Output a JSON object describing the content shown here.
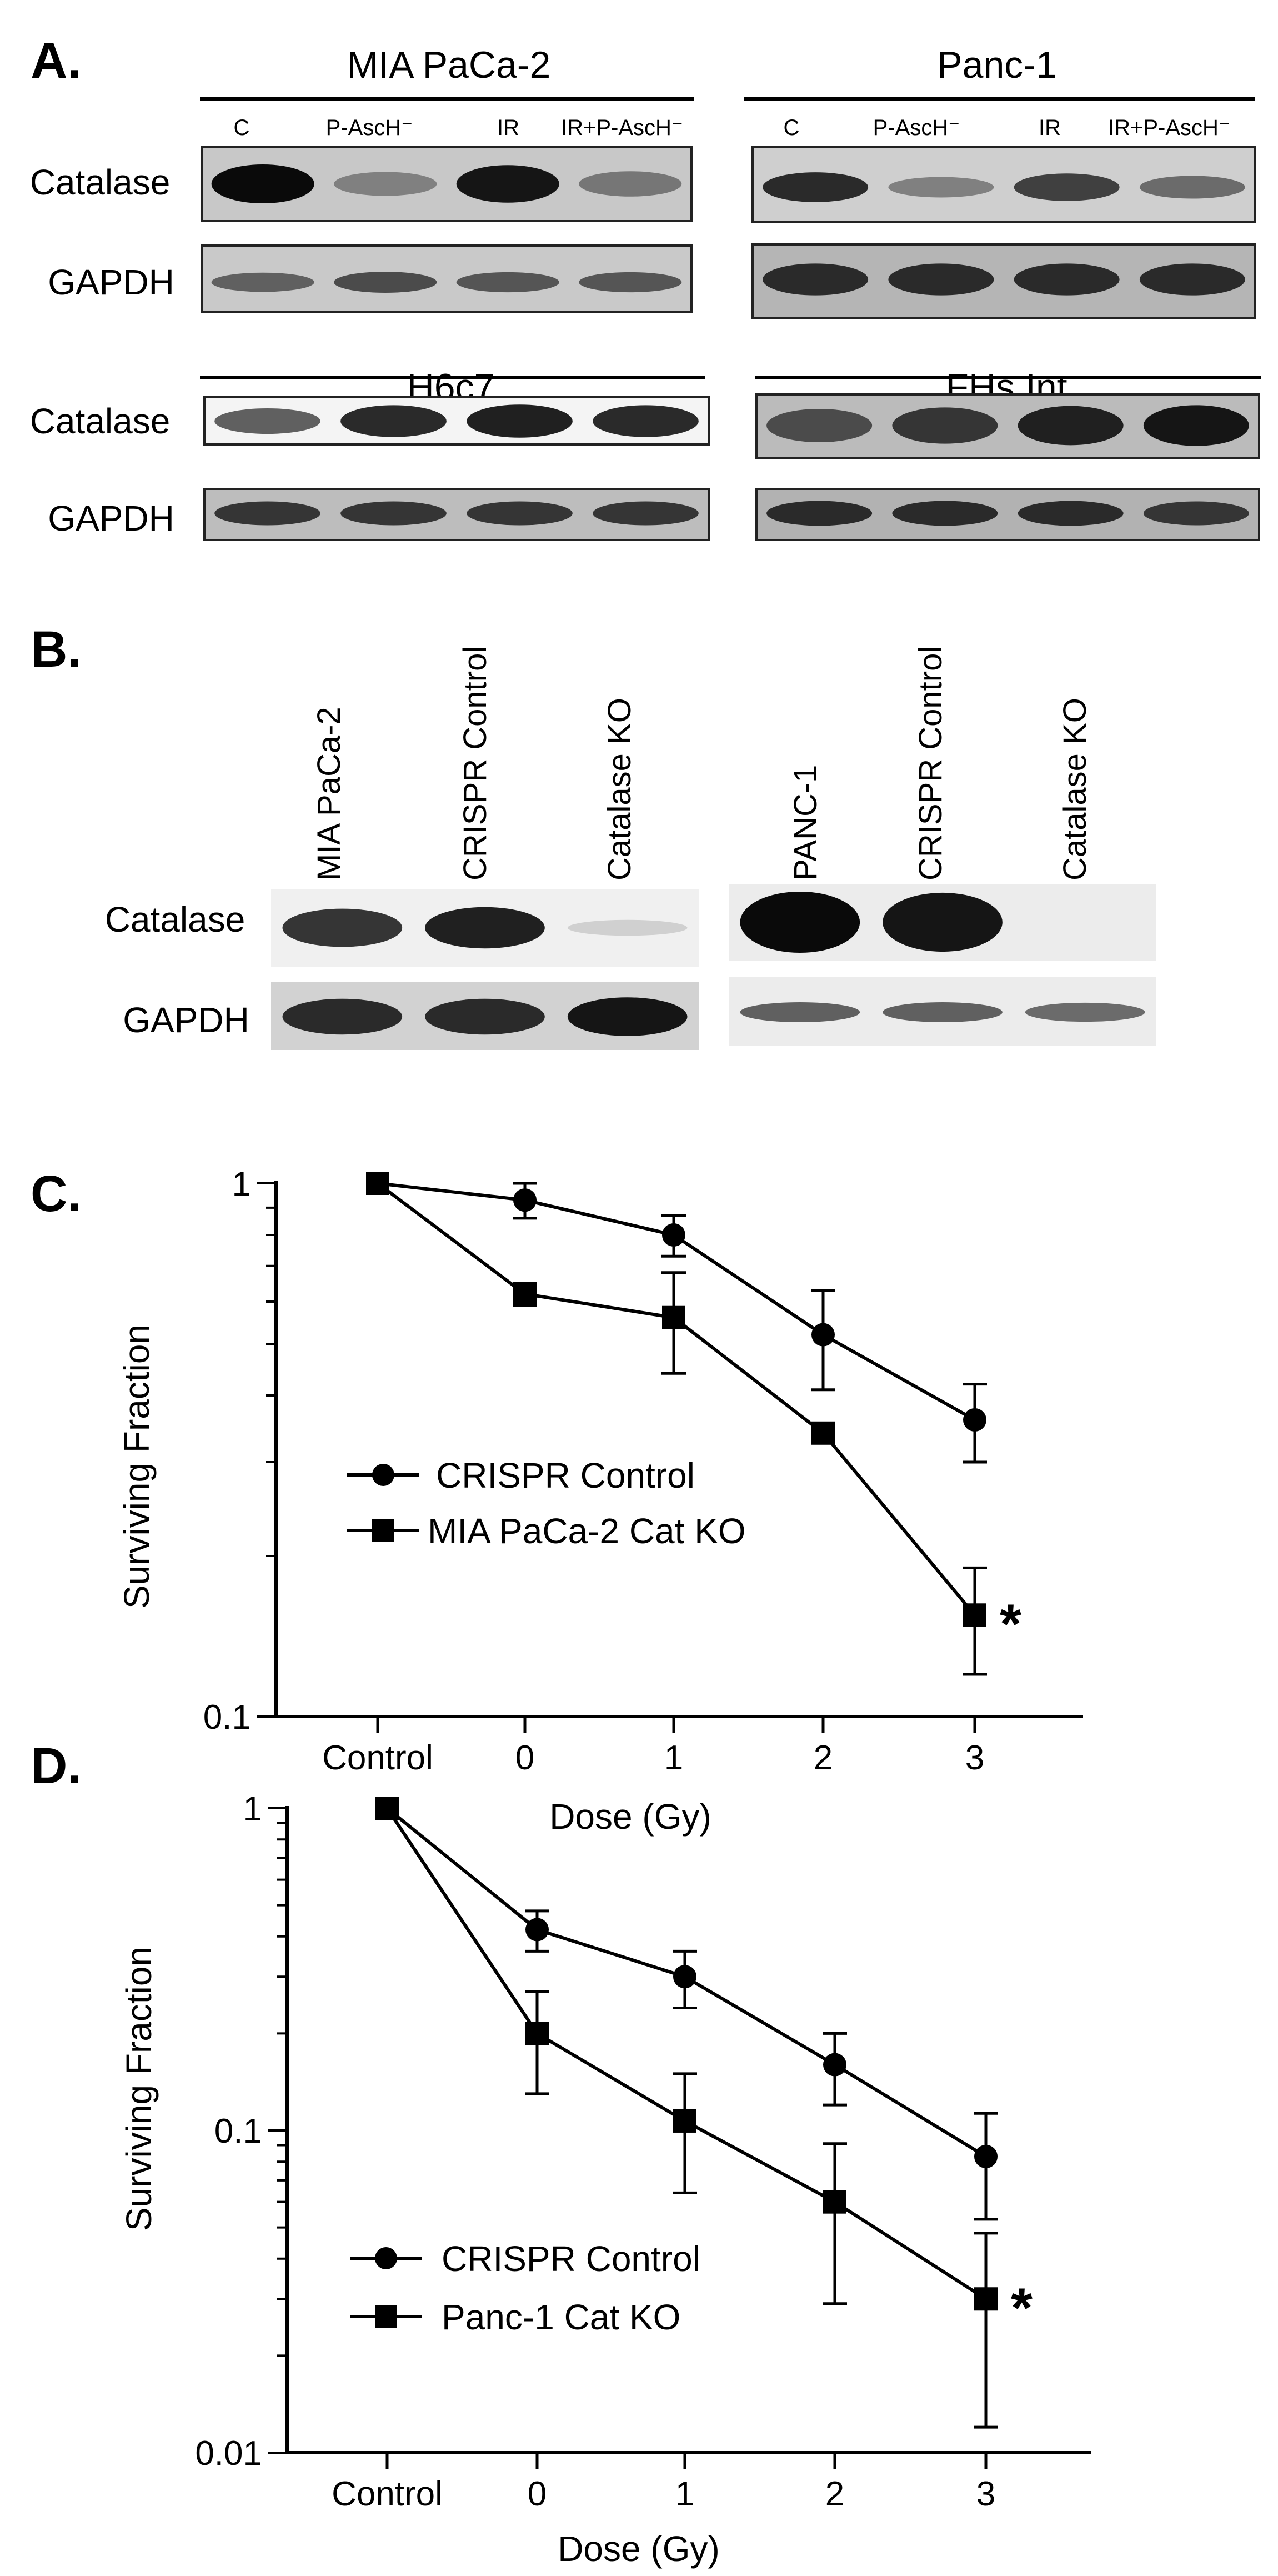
{
  "panel_labels": {
    "a": "A.",
    "b": "B.",
    "c": "C.",
    "d": "D."
  },
  "panel_a": {
    "lane_labels": [
      "C",
      "P-AscH⁻",
      "IR",
      "IR+P-AscH⁻"
    ],
    "row_labels": [
      "Catalase",
      "GAPDH"
    ],
    "blots": [
      {
        "title": "MIA PaCa-2",
        "catalase": [
          1.0,
          0.45,
          0.95,
          0.5
        ],
        "gapdh": [
          0.6,
          0.7,
          0.65,
          0.65
        ]
      },
      {
        "title": "Panc-1",
        "catalase": [
          0.85,
          0.45,
          0.75,
          0.55
        ],
        "gapdh": [
          0.85,
          0.85,
          0.85,
          0.85
        ]
      },
      {
        "title": "H6c7",
        "catalase": [
          0.6,
          0.85,
          0.9,
          0.85
        ],
        "gapdh": [
          0.8,
          0.8,
          0.8,
          0.8
        ]
      },
      {
        "title": "FHs Int",
        "catalase": [
          0.7,
          0.8,
          0.9,
          0.95
        ],
        "gapdh": [
          0.85,
          0.85,
          0.85,
          0.8
        ]
      }
    ]
  },
  "panel_b": {
    "row_labels": [
      "Catalase",
      "GAPDH"
    ],
    "blots": [
      {
        "lanes": [
          "MIA PaCa-2",
          "CRISPR Control",
          "Catalase KO"
        ],
        "catalase": [
          0.8,
          0.9,
          0.08
        ],
        "gapdh": [
          0.85,
          0.85,
          0.95
        ]
      },
      {
        "lanes": [
          "PANC-1",
          "CRISPR Control",
          "Catalase KO"
        ],
        "catalase": [
          1.0,
          0.95,
          0.0
        ],
        "gapdh": [
          0.6,
          0.6,
          0.55
        ]
      }
    ]
  },
  "significance_marker": "*",
  "chart_data": [
    {
      "type": "line",
      "panel": "C",
      "xlabel": "Dose (Gy)",
      "ylabel": "Surviving Fraction",
      "categories": [
        "Control",
        "0",
        "1",
        "2",
        "3"
      ],
      "yscale": "log",
      "ylim": [
        0.1,
        1
      ],
      "yticks": [
        "0.1",
        "1"
      ],
      "legend_position": "center-left",
      "series": [
        {
          "name": "CRISPR Control",
          "marker": "circle",
          "values": [
            1.0,
            0.93,
            0.8,
            0.52,
            0.36
          ],
          "errors": [
            0.0,
            0.07,
            0.07,
            0.11,
            0.06
          ]
        },
        {
          "name": "MIA PaCa-2 Cat KO",
          "marker": "square",
          "values": [
            1.0,
            0.62,
            0.56,
            0.34,
            0.155
          ],
          "errors": [
            0.0,
            0.03,
            0.12,
            0.0,
            0.035
          ]
        }
      ],
      "annotations": [
        {
          "text": "*",
          "category": "3"
        }
      ]
    },
    {
      "type": "line",
      "panel": "D",
      "xlabel": "Dose (Gy)",
      "ylabel": "Surviving Fraction",
      "categories": [
        "Control",
        "0",
        "1",
        "2",
        "3"
      ],
      "yscale": "log",
      "ylim": [
        0.01,
        1
      ],
      "yticks": [
        "0.01",
        "0.1",
        "1"
      ],
      "legend_position": "bottom-left",
      "series": [
        {
          "name": "CRISPR Control",
          "marker": "circle",
          "values": [
            1.0,
            0.42,
            0.3,
            0.16,
            0.083
          ],
          "errors": [
            0.0,
            0.06,
            0.06,
            0.04,
            0.03
          ]
        },
        {
          "name": "Panc-1 Cat KO",
          "marker": "square",
          "values": [
            1.0,
            0.2,
            0.107,
            0.06,
            0.03
          ],
          "errors": [
            0.0,
            0.07,
            0.043,
            0.031,
            0.018
          ]
        }
      ],
      "annotations": [
        {
          "text": "*",
          "category": "3"
        }
      ]
    }
  ]
}
